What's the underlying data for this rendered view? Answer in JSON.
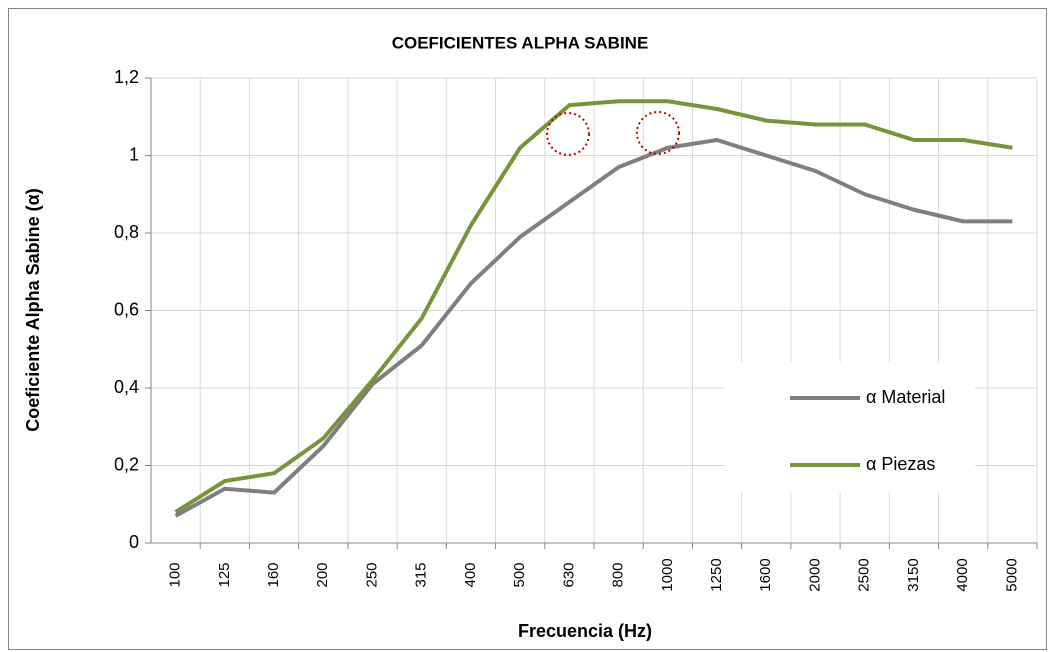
{
  "chart_data": {
    "type": "line",
    "title": "COEFICIENTES ALPHA SABINE",
    "x_label": "Frecuencia (Hz)",
    "y_label": "Coeficiente  Alpha Sabine (α)",
    "categories": [
      "100",
      "125",
      "160",
      "200",
      "250",
      "315",
      "400",
      "500",
      "630",
      "800",
      "1000",
      "1250",
      "1600",
      "2000",
      "2500",
      "3150",
      "4000",
      "5000"
    ],
    "series": [
      {
        "name": "α Material",
        "color": "#7f7f7f",
        "values": [
          0.07,
          0.14,
          0.13,
          0.25,
          0.41,
          0.51,
          0.67,
          0.79,
          0.88,
          0.97,
          1.02,
          1.04,
          1.0,
          0.96,
          0.9,
          0.86,
          0.83,
          0.83
        ]
      },
      {
        "name": "α Piezas",
        "color": "#77933c",
        "values": [
          0.08,
          0.16,
          0.18,
          0.27,
          0.42,
          0.58,
          0.82,
          1.02,
          1.13,
          1.14,
          1.14,
          1.12,
          1.09,
          1.08,
          1.08,
          1.04,
          1.04,
          1.02
        ]
      }
    ],
    "ylim": [
      0,
      1.2
    ],
    "yticks": [
      0,
      {
        "value": 0.2,
        "label": "0,2"
      },
      {
        "value": 0.4,
        "label": "0,4"
      },
      {
        "value": 0.6,
        "label": "0,6"
      },
      {
        "value": 0.8,
        "label": "0,8"
      },
      1,
      {
        "value": 1.2,
        "label": "1,2"
      }
    ],
    "grid": true,
    "legend": "right"
  }
}
